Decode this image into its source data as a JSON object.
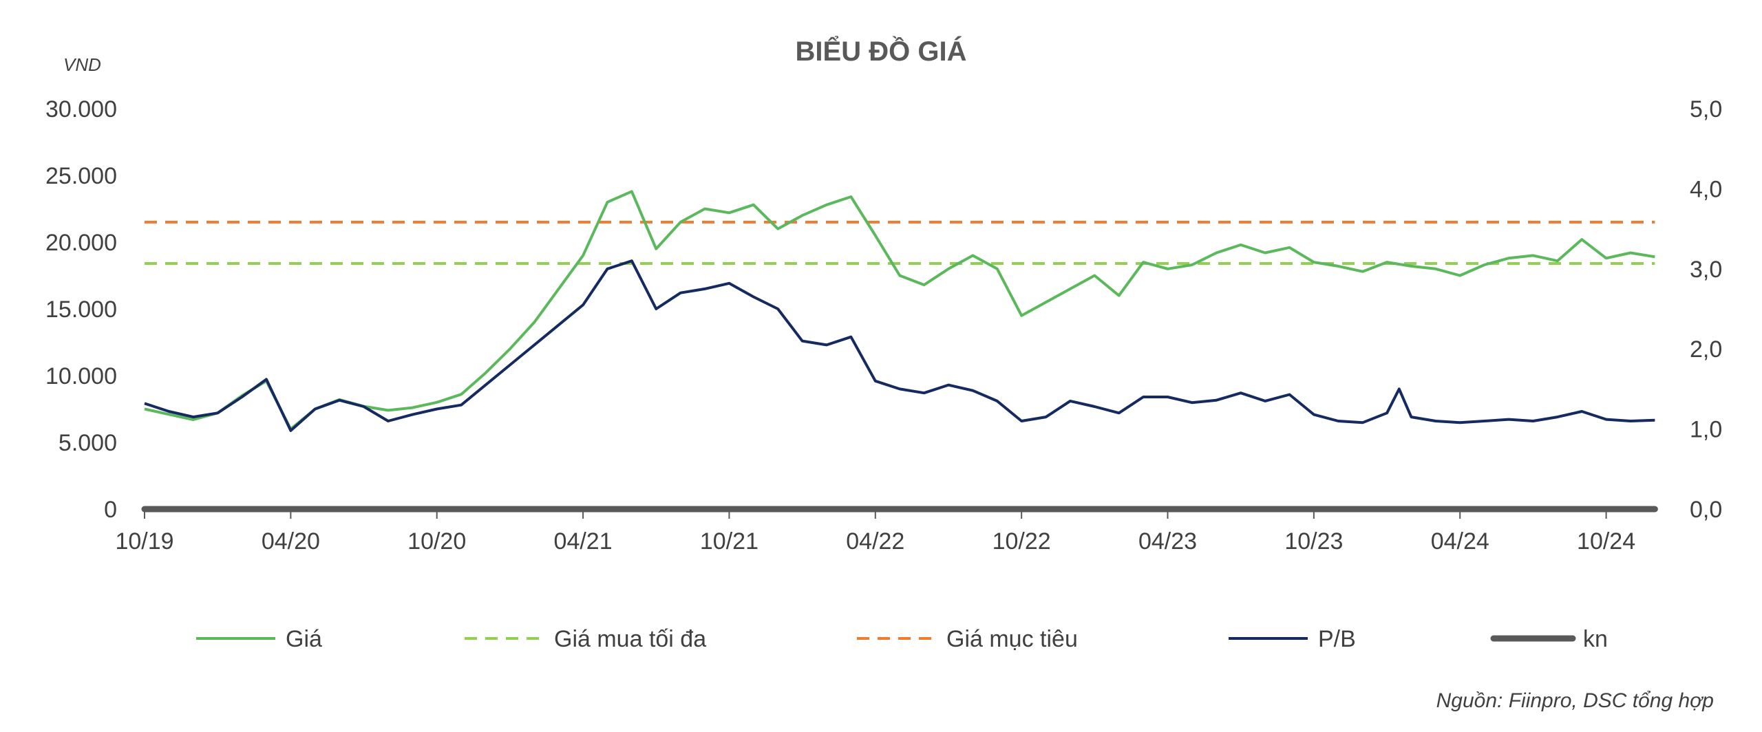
{
  "chart_data": {
    "type": "line",
    "title": "BIỂU ĐỒ GIÁ",
    "ylabel_left": "VND",
    "source": "Nguồn: Fiinpro, DSC tổng hợp",
    "x_ticks": [
      "10/19",
      "04/20",
      "10/20",
      "04/21",
      "10/21",
      "04/22",
      "10/22",
      "04/23",
      "10/23",
      "04/24",
      "10/24"
    ],
    "x_range": [
      "10/19",
      "12/24"
    ],
    "y_left": {
      "min": 0,
      "max": 30000,
      "ticks": [
        0,
        5000,
        10000,
        15000,
        20000,
        25000,
        30000
      ],
      "tick_labels": [
        "0",
        "5.000",
        "10.000",
        "15.000",
        "20.000",
        "25.000",
        "30.000"
      ]
    },
    "y_right": {
      "min": 0,
      "max": 5,
      "ticks": [
        0,
        1,
        2,
        3,
        4,
        5
      ],
      "tick_labels": [
        "0,0",
        "1,0",
        "2,0",
        "3,0",
        "4,0",
        "5,0"
      ]
    },
    "grid": false,
    "legend_position": "bottom",
    "series": [
      {
        "name": "Giá",
        "axis": "left",
        "color": "#5cb85c",
        "style": "solid",
        "points": [
          [
            "10/19",
            7500
          ],
          [
            "11/19",
            7100
          ],
          [
            "12/19",
            6700
          ],
          [
            "01/20",
            7200
          ],
          [
            "02/20",
            8500
          ],
          [
            "03/20",
            9600
          ],
          [
            "04/20",
            6000
          ],
          [
            "05/20",
            7500
          ],
          [
            "06/20",
            8200
          ],
          [
            "07/20",
            7700
          ],
          [
            "08/20",
            7400
          ],
          [
            "09/20",
            7600
          ],
          [
            "10/20",
            8000
          ],
          [
            "11/20",
            8600
          ],
          [
            "12/20",
            10200
          ],
          [
            "01/21",
            12000
          ],
          [
            "02/21",
            14000
          ],
          [
            "03/21",
            16500
          ],
          [
            "04/21",
            19000
          ],
          [
            "05/21",
            23000
          ],
          [
            "06/21",
            23800
          ],
          [
            "07/21",
            19500
          ],
          [
            "08/21",
            21500
          ],
          [
            "09/21",
            22500
          ],
          [
            "10/21",
            22200
          ],
          [
            "11/21",
            22800
          ],
          [
            "12/21",
            21000
          ],
          [
            "01/22",
            22000
          ],
          [
            "02/22",
            22800
          ],
          [
            "03/22",
            23400
          ],
          [
            "04/22",
            20500
          ],
          [
            "05/22",
            17500
          ],
          [
            "06/22",
            16800
          ],
          [
            "07/22",
            18000
          ],
          [
            "08/22",
            19000
          ],
          [
            "09/22",
            18000
          ],
          [
            "10/22",
            14500
          ],
          [
            "11/22",
            15500
          ],
          [
            "12/22",
            16500
          ],
          [
            "01/23",
            17500
          ],
          [
            "02/23",
            16000
          ],
          [
            "03/23",
            18500
          ],
          [
            "04/23",
            18000
          ],
          [
            "05/23",
            18300
          ],
          [
            "06/23",
            19200
          ],
          [
            "07/23",
            19800
          ],
          [
            "08/23",
            19200
          ],
          [
            "09/23",
            19600
          ],
          [
            "10/23",
            18500
          ],
          [
            "11/23",
            18200
          ],
          [
            "12/23",
            17800
          ],
          [
            "01/24",
            18500
          ],
          [
            "02/24",
            18200
          ],
          [
            "03/24",
            18000
          ],
          [
            "04/24",
            17500
          ],
          [
            "05/24",
            18300
          ],
          [
            "06/24",
            18800
          ],
          [
            "07/24",
            19000
          ],
          [
            "08/24",
            18600
          ],
          [
            "09/24",
            20200
          ],
          [
            "10/24",
            18800
          ],
          [
            "11/24",
            19200
          ],
          [
            "12/24",
            18900
          ]
        ]
      },
      {
        "name": "Giá mua tối đa",
        "axis": "left",
        "color": "#92d050",
        "style": "dashed",
        "value": 18400
      },
      {
        "name": "Giá mục tiêu",
        "axis": "left",
        "color": "#ed7d31",
        "style": "dashed",
        "value": 21500
      },
      {
        "name": "P/B",
        "axis": "right",
        "color": "#152a60",
        "style": "solid",
        "points": [
          [
            "10/19",
            1.32
          ],
          [
            "11/19",
            1.22
          ],
          [
            "12/19",
            1.15
          ],
          [
            "01/20",
            1.2
          ],
          [
            "02/20",
            1.4
          ],
          [
            "03/20",
            1.62
          ],
          [
            "04/20",
            0.98
          ],
          [
            "05/20",
            1.25
          ],
          [
            "06/20",
            1.36
          ],
          [
            "07/20",
            1.28
          ],
          [
            "08/20",
            1.1
          ],
          [
            "09/20",
            1.18
          ],
          [
            "10/20",
            1.25
          ],
          [
            "11/20",
            1.3
          ],
          [
            "12/20",
            1.55
          ],
          [
            "01/21",
            1.8
          ],
          [
            "02/21",
            2.05
          ],
          [
            "03/21",
            2.3
          ],
          [
            "04/21",
            2.55
          ],
          [
            "05/21",
            3.0
          ],
          [
            "06/21",
            3.1
          ],
          [
            "07/21",
            2.5
          ],
          [
            "08/21",
            2.7
          ],
          [
            "09/21",
            2.75
          ],
          [
            "10/21",
            2.82
          ],
          [
            "11/21",
            2.65
          ],
          [
            "12/21",
            2.5
          ],
          [
            "01/22",
            2.1
          ],
          [
            "02/22",
            2.05
          ],
          [
            "03/22",
            2.15
          ],
          [
            "04/22",
            1.6
          ],
          [
            "05/22",
            1.5
          ],
          [
            "06/22",
            1.45
          ],
          [
            "07/22",
            1.55
          ],
          [
            "08/22",
            1.48
          ],
          [
            "09/22",
            1.35
          ],
          [
            "10/22",
            1.1
          ],
          [
            "11/22",
            1.15
          ],
          [
            "12/22",
            1.35
          ],
          [
            "01/23",
            1.28
          ],
          [
            "02/23",
            1.2
          ],
          [
            "03/23",
            1.4
          ],
          [
            "04/23",
            1.4
          ],
          [
            "05/23",
            1.33
          ],
          [
            "06/23",
            1.36
          ],
          [
            "07/23",
            1.45
          ],
          [
            "08/23",
            1.35
          ],
          [
            "09/23",
            1.43
          ],
          [
            "10/23",
            1.18
          ],
          [
            "11/23",
            1.1
          ],
          [
            "12/23",
            1.08
          ],
          [
            "01/24",
            1.2
          ],
          [
            "01/24b",
            1.5
          ],
          [
            "02/24",
            1.15
          ],
          [
            "03/24",
            1.1
          ],
          [
            "04/24",
            1.08
          ],
          [
            "05/24",
            1.1
          ],
          [
            "06/24",
            1.12
          ],
          [
            "07/24",
            1.1
          ],
          [
            "08/24",
            1.15
          ],
          [
            "09/24",
            1.22
          ],
          [
            "10/24",
            1.12
          ],
          [
            "11/24",
            1.1
          ],
          [
            "12/24",
            1.11
          ]
        ]
      },
      {
        "name": "kn",
        "axis": "left",
        "color": "#595959",
        "style": "solid-thick",
        "value": 0
      }
    ]
  }
}
